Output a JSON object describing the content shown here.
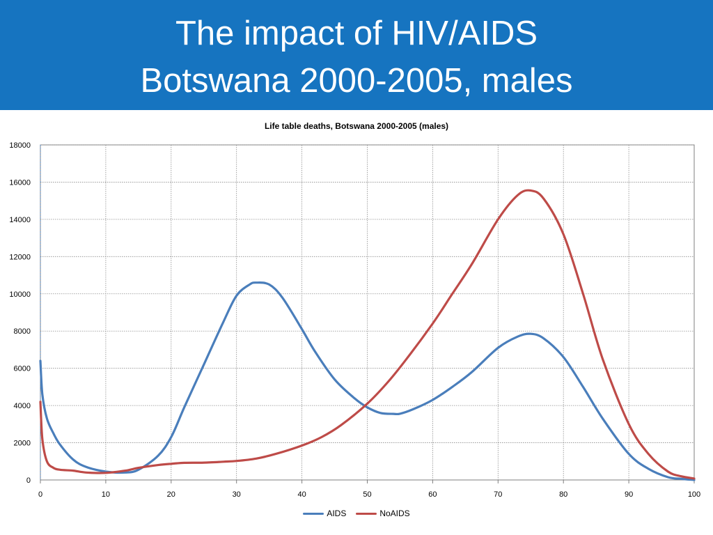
{
  "slide": {
    "title_line1": "The impact of HIV/AIDS",
    "title_line2": "Botswana 2000-2005, males"
  },
  "colors": {
    "banner": "#1674c0",
    "aids": "#4a7ebb",
    "noaids": "#be4b48"
  },
  "chart_data": {
    "type": "line",
    "title": "Life table deaths, Botswana 2000-2005 (males)",
    "xlabel": "",
    "ylabel": "",
    "xlim": [
      0,
      100
    ],
    "ylim": [
      0,
      18000
    ],
    "x_ticks": [
      0,
      10,
      20,
      30,
      40,
      50,
      60,
      70,
      80,
      90,
      100
    ],
    "y_ticks": [
      0,
      2000,
      4000,
      6000,
      8000,
      10000,
      12000,
      14000,
      16000,
      18000
    ],
    "grid": true,
    "legend_position": "bottom",
    "series": [
      {
        "name": "AIDS",
        "color": "#4a7ebb",
        "x": [
          0,
          0.3,
          1,
          2,
          3,
          5,
          7,
          10,
          13,
          15,
          18,
          20,
          22,
          25,
          28,
          30,
          32,
          33,
          35,
          37,
          40,
          42,
          45,
          48,
          50,
          52,
          54,
          55,
          57,
          60,
          63,
          66,
          70,
          73,
          75,
          77,
          80,
          83,
          86,
          90,
          93,
          96,
          98,
          100
        ],
        "y": [
          6400,
          4600,
          3300,
          2500,
          1900,
          1100,
          700,
          450,
          400,
          550,
          1300,
          2300,
          3900,
          6200,
          8500,
          9900,
          10500,
          10600,
          10500,
          9800,
          8100,
          6900,
          5400,
          4400,
          3900,
          3600,
          3550,
          3560,
          3800,
          4300,
          5000,
          5800,
          7100,
          7700,
          7850,
          7600,
          6600,
          5000,
          3300,
          1400,
          600,
          150,
          60,
          0
        ]
      },
      {
        "name": "NoAIDS",
        "color": "#be4b48",
        "x": [
          0,
          0.3,
          1,
          2,
          3,
          5,
          7,
          10,
          13,
          15,
          18,
          20,
          22,
          25,
          28,
          30,
          33,
          36,
          40,
          43,
          46,
          50,
          53,
          56,
          60,
          63,
          66,
          70,
          73,
          75,
          77,
          80,
          83,
          86,
          90,
          93,
          96,
          98,
          100
        ],
        "y": [
          4200,
          2200,
          1000,
          650,
          550,
          500,
          400,
          380,
          500,
          650,
          800,
          870,
          920,
          930,
          980,
          1020,
          1150,
          1400,
          1850,
          2300,
          2950,
          4100,
          5200,
          6500,
          8400,
          10000,
          11600,
          14000,
          15300,
          15550,
          15100,
          13200,
          10000,
          6500,
          3000,
          1400,
          450,
          200,
          80
        ]
      }
    ]
  }
}
